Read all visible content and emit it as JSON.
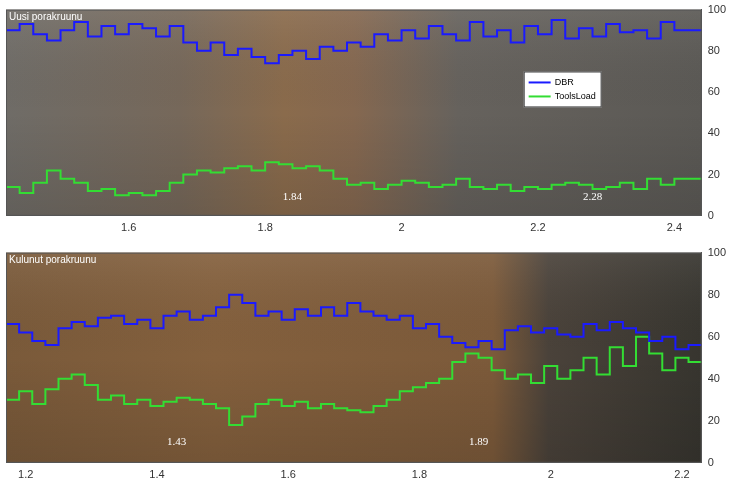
{
  "chart_data": [
    {
      "type": "line",
      "title": "Uusi porakruunu",
      "x": [
        1.42,
        1.44,
        1.46,
        1.48,
        1.5,
        1.52,
        1.54,
        1.56,
        1.58,
        1.6,
        1.62,
        1.64,
        1.66,
        1.68,
        1.7,
        1.72,
        1.74,
        1.76,
        1.78,
        1.8,
        1.82,
        1.84,
        1.86,
        1.88,
        1.9,
        1.92,
        1.94,
        1.96,
        1.98,
        2.0,
        2.02,
        2.04,
        2.06,
        2.08,
        2.1,
        2.12,
        2.14,
        2.16,
        2.18,
        2.2,
        2.22,
        2.24,
        2.26,
        2.28,
        2.3,
        2.32,
        2.34,
        2.36,
        2.38,
        2.4,
        2.42,
        2.44
      ],
      "series": [
        {
          "name": "DBR",
          "color": "#1a1aff",
          "line_style": "steps",
          "values": [
            92,
            90,
            93,
            88,
            85,
            90,
            94,
            87,
            92,
            88,
            93,
            91,
            87,
            92,
            84,
            80,
            84,
            78,
            81,
            77,
            74,
            78,
            80,
            76,
            82,
            80,
            84,
            82,
            88,
            85,
            90,
            86,
            92,
            88,
            85,
            94,
            87,
            90,
            84,
            92,
            88,
            95,
            86,
            91,
            87,
            93,
            89,
            90,
            86,
            94,
            90,
            90
          ]
        },
        {
          "name": "ToolsLoad",
          "color": "#33dd33",
          "line_style": "steps",
          "values": [
            12,
            14,
            11,
            16,
            22,
            18,
            16,
            12,
            13,
            10,
            11,
            10,
            12,
            16,
            20,
            22,
            21,
            23,
            24,
            22,
            26,
            25,
            23,
            24,
            22,
            18,
            15,
            16,
            13,
            15,
            17,
            16,
            14,
            15,
            18,
            14,
            13,
            15,
            12,
            14,
            13,
            15,
            16,
            15,
            13,
            14,
            16,
            13,
            18,
            15,
            18,
            18
          ]
        }
      ],
      "xlim": [
        1.42,
        2.44
      ],
      "xticks": [
        1.6,
        1.8,
        2,
        2.2,
        2.4
      ],
      "ylim": [
        0,
        100
      ],
      "yticks": [
        0,
        20,
        40,
        60,
        80,
        100
      ],
      "grid": false,
      "legend": "right",
      "annotations": [
        {
          "text": "1.84",
          "x": 1.84,
          "y": 9
        },
        {
          "text": "2.28",
          "x": 2.28,
          "y": 9
        }
      ]
    },
    {
      "type": "line",
      "title": "Kulunut porakruunu",
      "x": [
        1.17,
        1.19,
        1.21,
        1.23,
        1.25,
        1.27,
        1.29,
        1.31,
        1.33,
        1.35,
        1.37,
        1.39,
        1.41,
        1.43,
        1.45,
        1.47,
        1.49,
        1.51,
        1.53,
        1.55,
        1.57,
        1.59,
        1.61,
        1.63,
        1.65,
        1.67,
        1.69,
        1.71,
        1.73,
        1.75,
        1.77,
        1.79,
        1.81,
        1.83,
        1.85,
        1.87,
        1.89,
        1.91,
        1.93,
        1.95,
        1.97,
        1.99,
        2.01,
        2.03,
        2.05,
        2.07,
        2.09,
        2.11,
        2.13,
        2.15,
        2.17,
        2.19,
        2.21,
        2.23
      ],
      "series": [
        {
          "name": "DBR",
          "color": "#1a1aff",
          "line_style": "steps",
          "values": [
            68,
            66,
            62,
            58,
            56,
            64,
            67,
            65,
            69,
            70,
            66,
            68,
            64,
            70,
            72,
            68,
            70,
            74,
            80,
            76,
            70,
            72,
            68,
            73,
            70,
            74,
            70,
            76,
            72,
            70,
            68,
            70,
            64,
            66,
            60,
            57,
            55,
            58,
            54,
            63,
            65,
            62,
            64,
            61,
            60,
            66,
            63,
            67,
            64,
            62,
            58,
            60,
            54,
            56
          ]
        },
        {
          "name": "ToolsLoad",
          "color": "#33dd33",
          "line_style": "steps",
          "values": [
            26,
            30,
            34,
            28,
            35,
            40,
            42,
            37,
            30,
            32,
            28,
            30,
            27,
            29,
            31,
            30,
            28,
            26,
            18,
            22,
            28,
            30,
            27,
            29,
            26,
            28,
            26,
            25,
            24,
            27,
            30,
            34,
            36,
            38,
            40,
            48,
            52,
            50,
            44,
            40,
            42,
            38,
            46,
            40,
            44,
            50,
            42,
            55,
            46,
            60,
            52,
            44,
            50,
            48
          ]
        }
      ],
      "xlim": [
        1.17,
        2.23
      ],
      "xticks": [
        1.2,
        1.4,
        1.6,
        1.8,
        2,
        2.2
      ],
      "ylim": [
        0,
        100
      ],
      "yticks": [
        0,
        20,
        40,
        60,
        80,
        100
      ],
      "grid": false,
      "annotations": [
        {
          "text": "1.43",
          "x": 1.43,
          "y": 10
        },
        {
          "text": "1.89",
          "x": 1.89,
          "y": 10
        }
      ]
    }
  ]
}
